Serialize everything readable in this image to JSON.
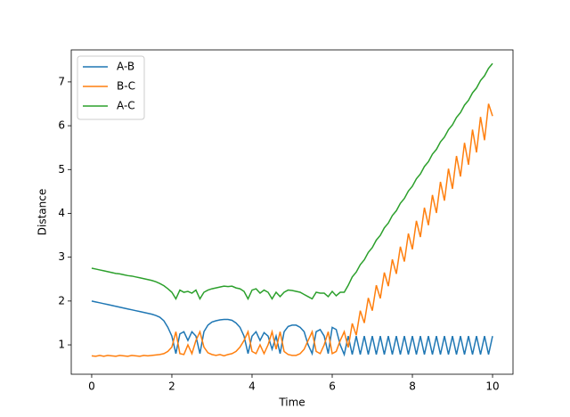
{
  "chart_data": {
    "type": "line",
    "xlabel": "Time",
    "ylabel": "Distance",
    "x": [
      0,
      0.1,
      0.2,
      0.3,
      0.4,
      0.5,
      0.6,
      0.7,
      0.8,
      0.9,
      1,
      1.1,
      1.2,
      1.3,
      1.4,
      1.5,
      1.6,
      1.7,
      1.8,
      1.9,
      2,
      2.1,
      2.2,
      2.3,
      2.4,
      2.5,
      2.6,
      2.7,
      2.8,
      2.9,
      3,
      3.1,
      3.2,
      3.3,
      3.4,
      3.5,
      3.6,
      3.7,
      3.8,
      3.9,
      4,
      4.1,
      4.2,
      4.3,
      4.4,
      4.5,
      4.6,
      4.7,
      4.8,
      4.9,
      5,
      5.1,
      5.2,
      5.3,
      5.4,
      5.5,
      5.6,
      5.7,
      5.8,
      5.9,
      6,
      6.1,
      6.2,
      6.3,
      6.4,
      6.5,
      6.6,
      6.7,
      6.8,
      6.9,
      7,
      7.1,
      7.2,
      7.3,
      7.4,
      7.5,
      7.6,
      7.7,
      7.8,
      7.9,
      8,
      8.1,
      8.2,
      8.3,
      8.4,
      8.5,
      8.6,
      8.7,
      8.8,
      8.9,
      9,
      9.1,
      9.2,
      9.3,
      9.4,
      9.5,
      9.6,
      9.7,
      9.8,
      9.9,
      10
    ],
    "series": [
      {
        "name": "A-B",
        "color": "#1f77b4",
        "values": [
          2.0,
          1.98,
          1.96,
          1.94,
          1.92,
          1.9,
          1.88,
          1.86,
          1.84,
          1.82,
          1.8,
          1.78,
          1.76,
          1.74,
          1.72,
          1.7,
          1.67,
          1.63,
          1.55,
          1.4,
          1.2,
          0.8,
          1.25,
          1.3,
          1.1,
          1.3,
          1.2,
          0.8,
          1.3,
          1.45,
          1.52,
          1.55,
          1.57,
          1.58,
          1.58,
          1.56,
          1.5,
          1.4,
          1.2,
          0.8,
          1.2,
          1.3,
          1.1,
          1.28,
          1.2,
          0.9,
          1.2,
          0.8,
          1.3,
          1.42,
          1.45,
          1.45,
          1.4,
          1.3,
          1.0,
          0.8,
          1.3,
          1.35,
          1.2,
          0.8,
          1.4,
          1.35,
          1.0,
          0.78,
          1.2,
          0.78,
          1.2,
          0.78,
          1.2,
          0.78,
          1.2,
          0.78,
          1.2,
          0.78,
          1.2,
          0.78,
          1.2,
          0.78,
          1.2,
          0.78,
          1.2,
          0.78,
          1.2,
          0.78,
          1.2,
          0.78,
          1.2,
          0.78,
          1.2,
          0.78,
          1.2,
          0.78,
          1.2,
          0.78,
          1.2,
          0.78,
          1.2,
          0.78,
          1.2,
          0.78,
          1.2
        ]
      },
      {
        "name": "B-C",
        "color": "#ff7f0e",
        "values": [
          0.75,
          0.74,
          0.76,
          0.74,
          0.76,
          0.75,
          0.74,
          0.76,
          0.75,
          0.74,
          0.76,
          0.75,
          0.74,
          0.76,
          0.75,
          0.76,
          0.77,
          0.78,
          0.8,
          0.85,
          0.95,
          1.3,
          0.8,
          0.78,
          1.0,
          0.8,
          1.1,
          1.3,
          0.95,
          0.82,
          0.78,
          0.76,
          0.78,
          0.75,
          0.78,
          0.8,
          0.85,
          0.95,
          1.1,
          1.3,
          0.85,
          0.8,
          1.0,
          0.8,
          1.0,
          1.3,
          0.9,
          1.3,
          0.85,
          0.78,
          0.76,
          0.76,
          0.8,
          0.9,
          1.1,
          1.3,
          0.85,
          0.8,
          1.0,
          1.3,
          0.8,
          0.85,
          1.1,
          1.3,
          0.94,
          1.49,
          1.22,
          1.78,
          1.5,
          2.07,
          1.78,
          2.36,
          2.06,
          2.65,
          2.34,
          2.95,
          2.62,
          3.24,
          2.9,
          3.54,
          3.18,
          3.83,
          3.46,
          4.13,
          3.73,
          4.42,
          4.01,
          4.72,
          4.29,
          5.02,
          4.56,
          5.31,
          4.84,
          5.61,
          5.11,
          5.91,
          5.39,
          6.2,
          5.67,
          6.5,
          6.22
        ]
      },
      {
        "name": "A-C",
        "color": "#2ca02c",
        "values": [
          2.75,
          2.73,
          2.71,
          2.69,
          2.67,
          2.65,
          2.63,
          2.62,
          2.6,
          2.58,
          2.57,
          2.55,
          2.53,
          2.51,
          2.49,
          2.47,
          2.44,
          2.4,
          2.35,
          2.28,
          2.2,
          2.05,
          2.25,
          2.2,
          2.22,
          2.18,
          2.25,
          2.05,
          2.2,
          2.25,
          2.28,
          2.3,
          2.32,
          2.34,
          2.33,
          2.34,
          2.3,
          2.28,
          2.22,
          2.05,
          2.25,
          2.28,
          2.18,
          2.25,
          2.2,
          2.05,
          2.2,
          2.1,
          2.2,
          2.25,
          2.24,
          2.22,
          2.2,
          2.15,
          2.1,
          2.05,
          2.2,
          2.18,
          2.18,
          2.1,
          2.22,
          2.12,
          2.2,
          2.2,
          2.36,
          2.55,
          2.66,
          2.83,
          2.94,
          3.11,
          3.22,
          3.39,
          3.5,
          3.67,
          3.78,
          3.95,
          4.06,
          4.23,
          4.34,
          4.51,
          4.62,
          4.79,
          4.9,
          5.07,
          5.18,
          5.35,
          5.46,
          5.63,
          5.74,
          5.91,
          6.02,
          6.19,
          6.3,
          6.47,
          6.58,
          6.75,
          6.86,
          7.03,
          7.14,
          7.31,
          7.42
        ]
      }
    ],
    "xlim": [
      -0.51,
      10.51
    ],
    "ylim": [
      0.33,
      7.73
    ],
    "xticks": [
      0,
      2,
      4,
      6,
      8,
      10
    ],
    "yticks": [
      1,
      2,
      3,
      4,
      5,
      6,
      7
    ],
    "legend": "upper left"
  }
}
